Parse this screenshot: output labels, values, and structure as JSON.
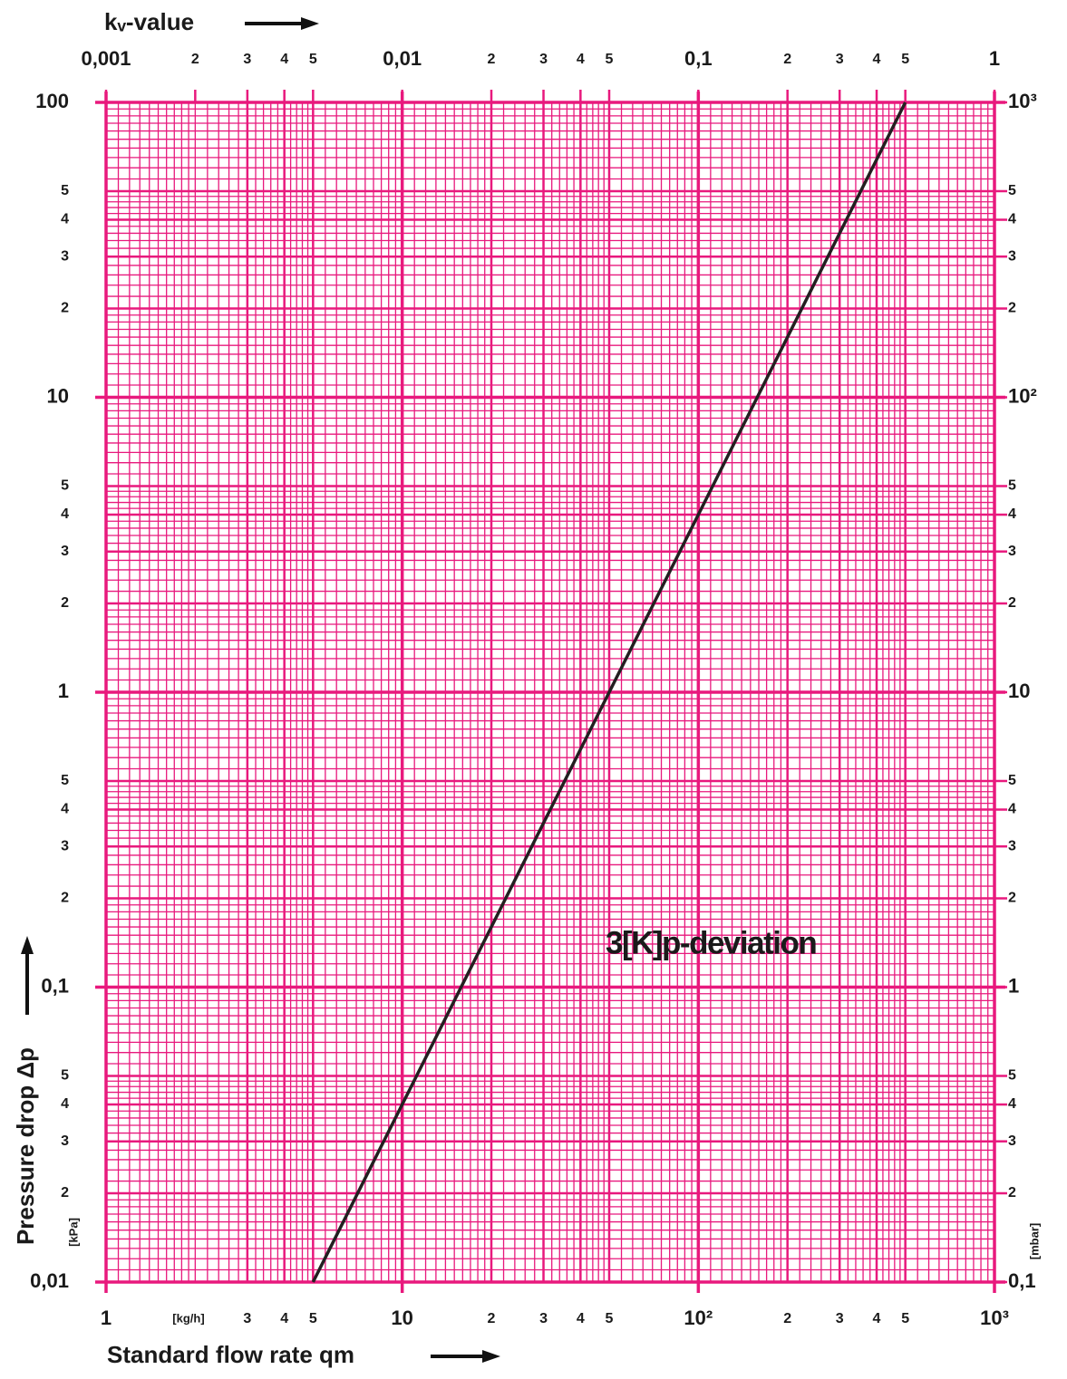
{
  "chart_data": {
    "type": "line",
    "x_label": "Standard flow rate qm",
    "x_unit": "[kg/h]",
    "x2_label": "kᵥ-value",
    "y_label": "Pressure drop Δp",
    "y_unit": "[kPa]",
    "y2_unit": "[mbar]",
    "annotation": "3[K]p-deviation",
    "log_x": true,
    "log_y": true,
    "grid": true,
    "minor_grid": true,
    "grid_color": "#e8197d",
    "xlim": [
      1,
      1000
    ],
    "xticks": [
      1,
      3,
      4,
      5,
      10,
      {
        "value": 20,
        "label": "2"
      },
      {
        "value": 30,
        "label": "3"
      },
      {
        "value": 40,
        "label": "4"
      },
      {
        "value": 50,
        "label": "5"
      },
      {
        "value": 100,
        "label": "10²"
      },
      {
        "value": 200,
        "label": "2"
      },
      {
        "value": 300,
        "label": "3"
      },
      {
        "value": 400,
        "label": "4"
      },
      {
        "value": 500,
        "label": "5"
      },
      {
        "value": 1000,
        "label": "10³"
      }
    ],
    "x2lim": [
      0.001,
      1
    ],
    "x2ticks": [
      {
        "value": 0.001,
        "label": "0,001"
      },
      {
        "value": 0.002,
        "label": "2"
      },
      {
        "value": 0.003,
        "label": "3"
      },
      {
        "value": 0.004,
        "label": "4"
      },
      {
        "value": 0.005,
        "label": "5"
      },
      {
        "value": 0.01,
        "label": "0,01"
      },
      {
        "value": 0.02,
        "label": "2"
      },
      {
        "value": 0.03,
        "label": "3"
      },
      {
        "value": 0.04,
        "label": "4"
      },
      {
        "value": 0.05,
        "label": "5"
      },
      {
        "value": 0.1,
        "label": "0,1"
      },
      {
        "value": 0.2,
        "label": "2"
      },
      {
        "value": 0.3,
        "label": "3"
      },
      {
        "value": 0.4,
        "label": "4"
      },
      {
        "value": 0.5,
        "label": "5"
      },
      1
    ],
    "ylim": [
      0.01,
      100
    ],
    "yticks": [
      100,
      {
        "value": 50,
        "label": "5"
      },
      {
        "value": 40,
        "label": "4"
      },
      {
        "value": 30,
        "label": "3"
      },
      {
        "value": 20,
        "label": "2"
      },
      10,
      5,
      4,
      3,
      2,
      1,
      {
        "value": 0.5,
        "label": "5"
      },
      {
        "value": 0.4,
        "label": "4"
      },
      {
        "value": 0.3,
        "label": "3"
      },
      {
        "value": 0.2,
        "label": "2"
      },
      {
        "value": 0.1,
        "label": "0,1"
      },
      {
        "value": 0.05,
        "label": "5"
      },
      {
        "value": 0.04,
        "label": "4"
      },
      {
        "value": 0.03,
        "label": "3"
      },
      {
        "value": 0.02,
        "label": "2"
      },
      {
        "value": 0.01,
        "label": "0,01"
      }
    ],
    "y2lim": [
      0.1,
      1000
    ],
    "y2ticks": [
      {
        "value": 1000,
        "label": "10³"
      },
      {
        "value": 500,
        "label": "5"
      },
      {
        "value": 400,
        "label": "4"
      },
      {
        "value": 300,
        "label": "3"
      },
      {
        "value": 200,
        "label": "2"
      },
      {
        "value": 100,
        "label": "10²"
      },
      {
        "value": 50,
        "label": "5"
      },
      {
        "value": 40,
        "label": "4"
      },
      {
        "value": 30,
        "label": "3"
      },
      {
        "value": 20,
        "label": "2"
      },
      10,
      5,
      4,
      3,
      2,
      1,
      {
        "value": 0.5,
        "label": "5"
      },
      {
        "value": 0.4,
        "label": "4"
      },
      {
        "value": 0.3,
        "label": "3"
      },
      {
        "value": 0.2,
        "label": "2"
      },
      {
        "value": 0.1,
        "label": "0,1"
      }
    ],
    "x": [
      5,
      500
    ],
    "series": [
      {
        "color": "#231f20",
        "values": [
          0.01,
          100
        ]
      }
    ]
  }
}
